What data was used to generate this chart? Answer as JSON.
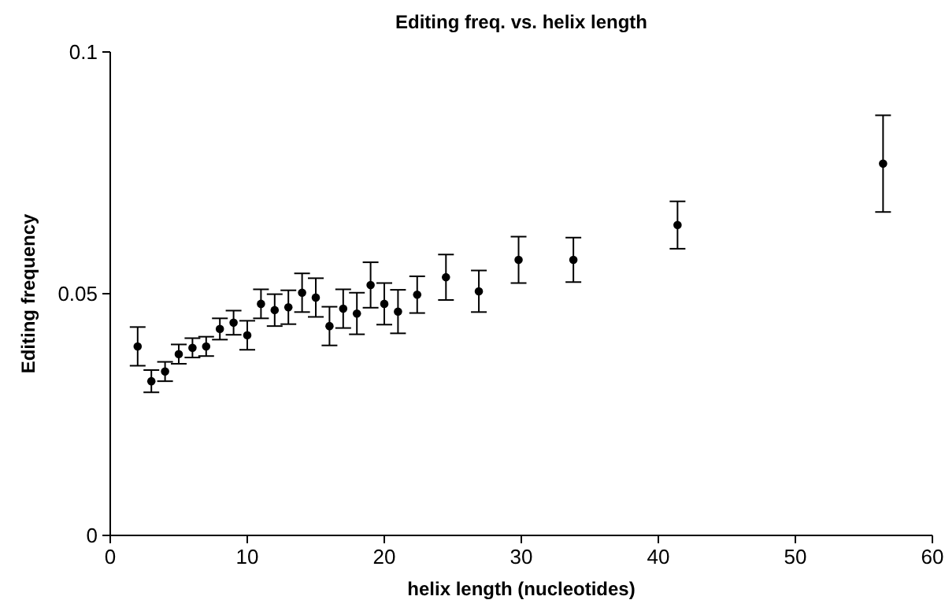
{
  "chart_data": {
    "type": "scatter",
    "title": "Editing freq. vs. helix length",
    "xlabel": "helix length (nucleotides)",
    "ylabel": "Editing frequency",
    "x": [
      2,
      3,
      4,
      5,
      6,
      7,
      8,
      9,
      10,
      11,
      12,
      13,
      14,
      15,
      16,
      17,
      18,
      19,
      20,
      21,
      22.4,
      24.5,
      26.9,
      29.8,
      33.8,
      41.4,
      56.4
    ],
    "series": [
      {
        "color": "#000000",
        "values": [
          0.0391,
          0.0319,
          0.0339,
          0.0375,
          0.0388,
          0.0391,
          0.0427,
          0.044,
          0.0414,
          0.0479,
          0.0466,
          0.0472,
          0.0502,
          0.0492,
          0.0433,
          0.0469,
          0.0459,
          0.0518,
          0.0479,
          0.0463,
          0.0498,
          0.0534,
          0.0505,
          0.057,
          0.057,
          0.0642,
          0.0769
        ],
        "errors": [
          0.004,
          0.0023,
          0.002,
          0.002,
          0.002,
          0.002,
          0.0022,
          0.0025,
          0.003,
          0.003,
          0.0033,
          0.0035,
          0.004,
          0.004,
          0.004,
          0.004,
          0.0043,
          0.0047,
          0.0043,
          0.0045,
          0.0038,
          0.0047,
          0.0043,
          0.0048,
          0.0046,
          0.0049,
          0.01
        ]
      }
    ],
    "xlim": [
      0,
      60
    ],
    "xticks": [
      0,
      10,
      20,
      30,
      40,
      50,
      60
    ],
    "ylim": [
      0,
      0.1
    ],
    "yticks": [
      0,
      0.05,
      0.1
    ],
    "marker": "circle",
    "grid": false
  }
}
